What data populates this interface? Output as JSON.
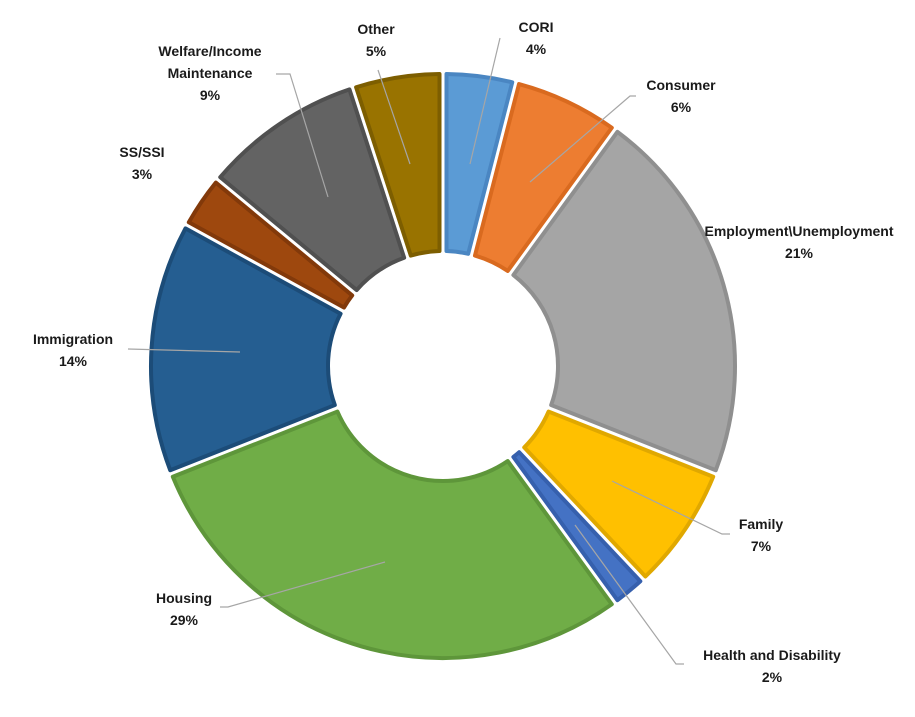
{
  "chart_data": {
    "type": "pie",
    "variant": "donut",
    "title": "",
    "legend": "none",
    "slices": [
      {
        "key": "cori",
        "name": "CORI",
        "value": 4,
        "label": "4%",
        "color": "#5b9bd5",
        "edge": "#4a86c2"
      },
      {
        "key": "consumer",
        "name": "Consumer",
        "value": 6,
        "label": "6%",
        "color": "#ed7d31",
        "edge": "#d96a1f"
      },
      {
        "key": "employment",
        "name": "Employment\\Unemployment",
        "value": 21,
        "label": "21%",
        "color": "#a5a5a5",
        "edge": "#8f8f8f"
      },
      {
        "key": "family",
        "name": "Family",
        "value": 7,
        "label": "7%",
        "color": "#ffc000",
        "edge": "#e0a800"
      },
      {
        "key": "health",
        "name": "Health and Disability",
        "value": 2,
        "label": "2%",
        "color": "#4472c4",
        "edge": "#3660ad"
      },
      {
        "key": "housing",
        "name": "Housing",
        "value": 29,
        "label": "29%",
        "color": "#70ad47",
        "edge": "#5e963a"
      },
      {
        "key": "immigration",
        "name": "Immigration",
        "value": 14,
        "label": "14%",
        "color": "#255e91",
        "edge": "#1c4c78"
      },
      {
        "key": "ssssi",
        "name": "SS/SSI",
        "value": 3,
        "label": "3%",
        "color": "#9e480e",
        "edge": "#82390a"
      },
      {
        "key": "welfare",
        "name": "Welfare/Income Maintenance",
        "name_lines": [
          "Welfare/Income",
          "Maintenance"
        ],
        "value": 9,
        "label": "9%",
        "color": "#636363",
        "edge": "#505050"
      },
      {
        "key": "other",
        "name": "Other",
        "value": 5,
        "label": "5%",
        "color": "#997300",
        "edge": "#7d5e00"
      }
    ]
  }
}
